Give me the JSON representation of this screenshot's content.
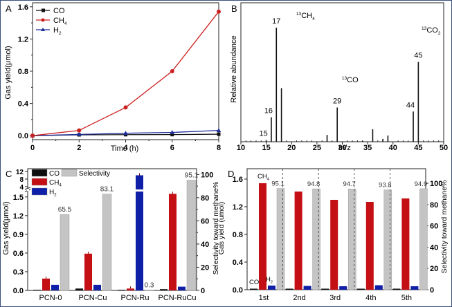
{
  "chart_data": [
    {
      "panel": "A",
      "type": "line",
      "title": "",
      "xlabel": "Time (h)",
      "ylabel": "Gas yield(μmol)",
      "x": [
        0,
        2,
        4,
        6,
        8
      ],
      "xlim": [
        0,
        8
      ],
      "ylim": [
        -0.05,
        1.65
      ],
      "xticks": [
        "0",
        "2",
        "4",
        "6",
        "8"
      ],
      "yticks": [
        "0.0",
        "0.4",
        "0.8",
        "1.2",
        "1.6"
      ],
      "legend_position": "top-left",
      "series": [
        {
          "name": "CO",
          "sub": "",
          "color": "#111111",
          "marker": "square",
          "values": [
            0.0,
            0.01,
            0.012,
            0.013,
            0.018
          ]
        },
        {
          "name": "CH",
          "sub": "4",
          "color": "#cc1f1f",
          "marker": "circle",
          "values": [
            0.0,
            0.065,
            0.35,
            0.8,
            1.54
          ]
        },
        {
          "name": "H",
          "sub": "2",
          "color": "#1f2f9a",
          "marker": "triangle",
          "values": [
            0.0,
            0.015,
            0.03,
            0.04,
            0.065
          ]
        }
      ]
    },
    {
      "panel": "B",
      "type": "bar",
      "title": "",
      "xlabel": "m/z",
      "ylabel": "Relative abundance",
      "xlim": [
        10,
        50
      ],
      "ylim": [
        0,
        100
      ],
      "xticks": [
        "10",
        "15",
        "20",
        "25",
        "30",
        "35",
        "40",
        "45",
        "50"
      ],
      "peaks": [
        {
          "mz": 15,
          "value": 1.5,
          "label": "15"
        },
        {
          "mz": 16,
          "value": 21.5,
          "label": "16"
        },
        {
          "mz": 17,
          "value": 100,
          "label": "17"
        },
        {
          "mz": 18,
          "value": 47,
          "label": ""
        },
        {
          "mz": 27,
          "value": 6,
          "label": ""
        },
        {
          "mz": 29,
          "value": 30,
          "label": "29"
        },
        {
          "mz": 34,
          "value": 0.8,
          "label": ""
        },
        {
          "mz": 36,
          "value": 11,
          "label": ""
        },
        {
          "mz": 38,
          "value": 2.5,
          "label": ""
        },
        {
          "mz": 39,
          "value": 5.5,
          "label": ""
        },
        {
          "mz": 44,
          "value": 26.5,
          "label": "44"
        },
        {
          "mz": 45,
          "value": 70,
          "label": "45"
        }
      ],
      "annotations": [
        {
          "text": "CH",
          "iso": "13",
          "sub": "4",
          "near_mz": 22
        },
        {
          "text": "CO",
          "iso": "13",
          "sub": "",
          "near_mz": 31
        },
        {
          "text": "CO",
          "iso": "13",
          "sub": "2",
          "near_mz": 47
        }
      ]
    },
    {
      "panel": "C",
      "type": "bar",
      "title": "",
      "xlabel": "",
      "ylabel": "Gas yield(μmol)",
      "ylabel_right": "Selectivity toward methane%",
      "categories": [
        "PCN-0",
        "PCN-Cu",
        "PCN-Ru",
        "PCN-RuCu"
      ],
      "yticks_lower": [
        "0.0",
        "0.3",
        "0.6",
        "0.9",
        "1.2",
        "1.5"
      ],
      "yticks_upper": [
        "4",
        "8",
        "12"
      ],
      "y_break": [
        1.6,
        4
      ],
      "yticks_right": [
        "0",
        "20",
        "40",
        "60",
        "80",
        "100"
      ],
      "ylim_right": [
        0,
        105
      ],
      "legend_position": "top-left",
      "series": [
        {
          "name": "CO",
          "sub": "",
          "color": "#0d0d0d",
          "values": [
            0.01,
            0.03,
            0.01,
            0.02
          ]
        },
        {
          "name": "CH",
          "sub": "4",
          "color": "#c40f14",
          "values": [
            0.19,
            0.59,
            0.03,
            1.55
          ]
        },
        {
          "name": "H",
          "sub": "2",
          "color": "#0f1fa8",
          "values": [
            0.09,
            0.09,
            10.0,
            0.06
          ]
        },
        {
          "name": "Selectivity",
          "sub": "",
          "color": "#c4c4c4",
          "axis": "right",
          "values": [
            65.5,
            83.1,
            0.3,
            95.1
          ]
        }
      ],
      "selectivity_labels": [
        "65.5",
        "83.1",
        "0.3",
        "95.1"
      ]
    },
    {
      "panel": "D",
      "type": "bar",
      "title": "",
      "xlabel": "",
      "ylabel": "Gas yield (umol)",
      "ylabel_right": "Selectivity toward methane%",
      "categories": [
        "1st",
        "2nd",
        "3rd",
        "4th",
        "5th"
      ],
      "ylim": [
        0,
        1.75
      ],
      "yticks": [
        "0.0",
        "0.4",
        "0.8",
        "1.2",
        "1.6"
      ],
      "yticks_right": [
        "0",
        "20",
        "40",
        "60",
        "80",
        "100"
      ],
      "ylim_right": [
        0,
        113.7
      ],
      "series": [
        {
          "name": "CO",
          "sub": "",
          "color": "#0d0d0d",
          "values": [
            0.015,
            0.015,
            0.015,
            0.015,
            0.015
          ]
        },
        {
          "name": "CH",
          "sub": "4",
          "color": "#c40f14",
          "values": [
            1.54,
            1.42,
            1.3,
            1.27,
            1.32
          ]
        },
        {
          "name": "H",
          "sub": "2",
          "color": "#0f1fa8",
          "values": [
            0.06,
            0.055,
            0.05,
            0.065,
            0.05
          ]
        },
        {
          "name": "Selectivity",
          "sub": "",
          "color": "#c4c4c4",
          "axis": "right",
          "values": [
            95.1,
            94.8,
            94.7,
            93.8,
            94.9
          ]
        }
      ],
      "selectivity_labels": [
        "95.1",
        "94.8",
        "94.7",
        "93.8",
        "94.9"
      ],
      "inline_labels": [
        "CO",
        "CH",
        "H"
      ]
    }
  ],
  "panel_labels": [
    "A",
    "B",
    "C",
    "D"
  ]
}
